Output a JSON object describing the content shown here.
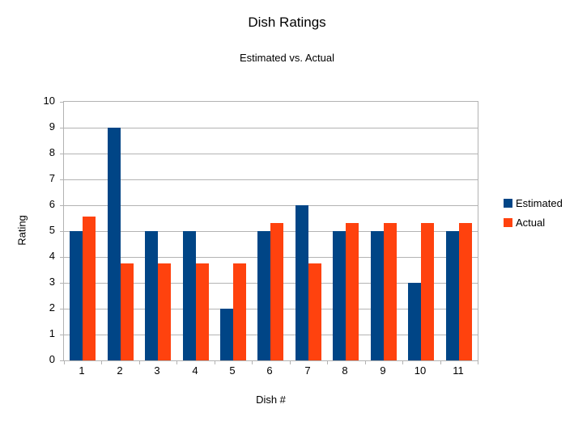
{
  "title": "Dish Ratings",
  "subtitle": "Estimated vs. Actual",
  "legend": {
    "position": "right",
    "items": [
      {
        "label": "Estimated",
        "color": "#004586"
      },
      {
        "label": "Actual",
        "color": "#FF420E"
      }
    ]
  },
  "chart_data": {
    "type": "bar",
    "title": "Dish Ratings",
    "subtitle": "Estimated vs. Actual",
    "categories": [
      "1",
      "2",
      "3",
      "4",
      "5",
      "6",
      "7",
      "8",
      "9",
      "10",
      "11"
    ],
    "series": [
      {
        "name": "Estimated",
        "color": "#004586",
        "values": [
          5,
          9,
          5,
          5,
          2,
          5,
          6,
          5,
          5,
          3,
          5
        ]
      },
      {
        "name": "Actual",
        "color": "#FF420E",
        "values": [
          5.55,
          3.75,
          3.75,
          3.75,
          3.75,
          5.3,
          3.75,
          5.3,
          5.3,
          5.3,
          5.3
        ]
      }
    ],
    "xlabel": "Dish #",
    "ylabel": "Rating",
    "ylim": [
      0,
      10
    ],
    "ytick_step": 1,
    "grid": true,
    "legend_position": "right"
  },
  "colors": {
    "background": "#ffffff",
    "gridline": "#b3b3b3",
    "axis": "#b3b3b3",
    "text": "#000000"
  }
}
